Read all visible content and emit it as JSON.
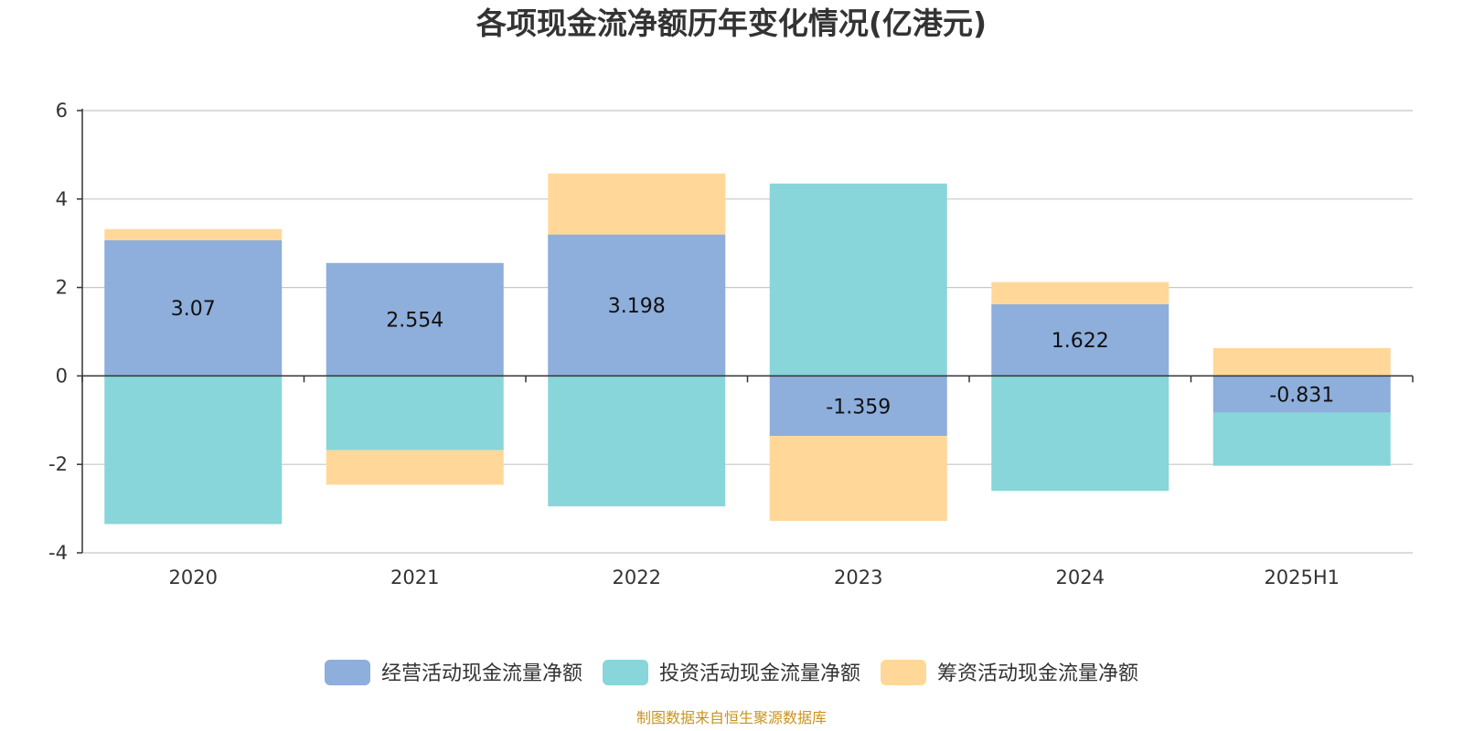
{
  "chart_data": {
    "type": "bar",
    "stacked": true,
    "title": "各项现金流净额历年变化情况(亿港元)",
    "categories": [
      "2020",
      "2021",
      "2022",
      "2023",
      "2024",
      "2025H1"
    ],
    "series": [
      {
        "name": "经营活动现金流量净额",
        "color": "#8eaedb",
        "values": [
          3.07,
          2.554,
          3.198,
          -1.359,
          1.622,
          -0.831
        ],
        "labels": [
          "3.07",
          "2.554",
          "3.198",
          "-1.359",
          "1.622",
          "-0.831"
        ]
      },
      {
        "name": "投资活动现金流量净额",
        "color": "#88d6d9",
        "values": [
          -3.35,
          -1.68,
          -2.95,
          4.35,
          -2.6,
          -1.2
        ]
      },
      {
        "name": "筹资活动现金流量净额",
        "color": "#ffd899",
        "values": [
          0.25,
          -0.78,
          1.38,
          -1.92,
          0.5,
          0.63
        ]
      }
    ],
    "ylim": [
      -4,
      6
    ],
    "yticks": [
      "-4",
      "-2",
      "0",
      "2",
      "4",
      "6"
    ],
    "grid": true,
    "legend_position": "bottom",
    "xlabel": "",
    "ylabel": ""
  },
  "source": "制图数据来自恒生聚源数据库"
}
